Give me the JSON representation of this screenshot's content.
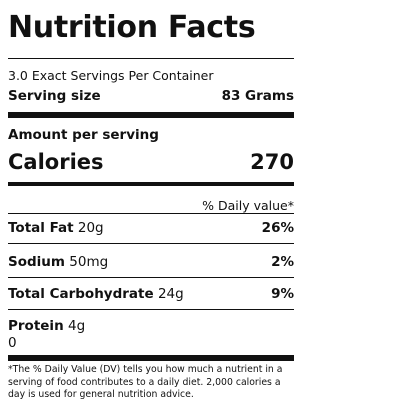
{
  "label": {
    "title": "Nutrition Facts",
    "servings_per_container": "3.0 Exact Servings Per Container",
    "serving_size_label": "Serving size",
    "serving_size_value": "83 Grams",
    "amount_per_serving": "Amount per serving",
    "calories_label": "Calories",
    "calories_value": "270",
    "daily_value_header": "% Daily value*",
    "nutrients": [
      {
        "name": "Total Fat",
        "amount": "20g",
        "dv": "26%"
      },
      {
        "name": "Sodium",
        "amount": "50mg",
        "dv": "2%"
      },
      {
        "name": "Total Carbohydrate",
        "amount": "24g",
        "dv": "9%"
      },
      {
        "name": "Protein",
        "amount": "4g",
        "extra": "0"
      }
    ],
    "footnote": "*The % Daily Value (DV) tells you how much a nutrient in a serving of food contributes to a daily diet. 2,000 calories a day is used for general nutrition advice."
  }
}
